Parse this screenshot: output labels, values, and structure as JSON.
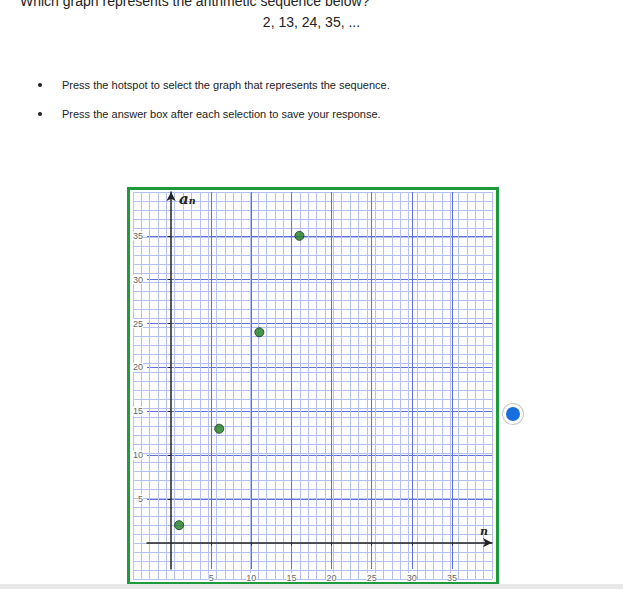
{
  "question": "Which graph represents the arithmetic sequence below?",
  "sequence": "2, 13, 24, 35, ...",
  "instructions": [
    "Press the hotspot to select the graph that represents the sequence.",
    "Press the answer box after each selection to save your response."
  ],
  "chart_data": {
    "type": "scatter",
    "x": [
      1,
      6,
      11,
      16
    ],
    "values": [
      2,
      13,
      24,
      35
    ],
    "color": "#1f7a1f",
    "marker": "circle",
    "xlabel": "n",
    "ylabel": "aₙ",
    "xlim": [
      -3,
      40
    ],
    "ylim": [
      -3,
      40
    ],
    "xticks": [
      5,
      10,
      15,
      20,
      25,
      30,
      35
    ],
    "yticks": [
      5,
      10,
      15,
      20,
      25,
      30,
      35
    ],
    "grid": true
  }
}
